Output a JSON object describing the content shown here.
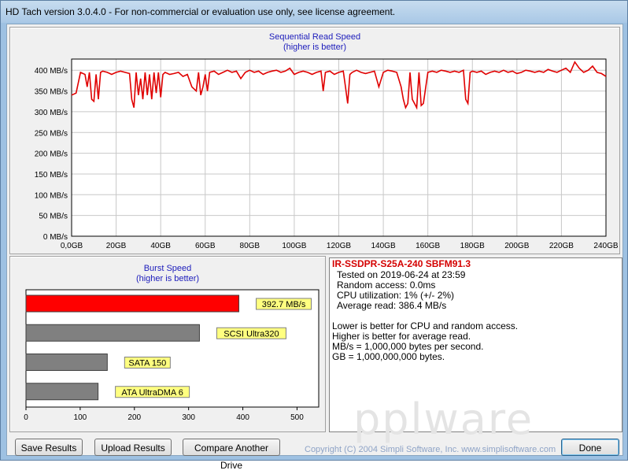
{
  "window": {
    "title": "HD Tach version 3.0.4.0  - For non-commercial or evaluation use only, see license agreement."
  },
  "colors": {
    "read_line": "#e00000",
    "burst_bar": "#ff0000",
    "ref_bar": "#808080",
    "label_bg": "#ffff80",
    "title_blue": "#1c1cbb"
  },
  "chart_data": [
    {
      "type": "line",
      "title": "Sequential Read Speed",
      "subtitle": "(higher is better)",
      "y_ticks": [
        "0 MB/s",
        "50 MB/s",
        "100 MB/s",
        "150 MB/s",
        "200 MB/s",
        "250 MB/s",
        "300 MB/s",
        "350 MB/s",
        "400 MB/s"
      ],
      "x_ticks": [
        "0,0GB",
        "20GB",
        "40GB",
        "60GB",
        "80GB",
        "100GB",
        "120GB",
        "140GB",
        "160GB",
        "180GB",
        "200GB",
        "220GB",
        "240GB"
      ],
      "xlim": [
        0,
        240
      ],
      "ylim": [
        0,
        420
      ],
      "grid": true,
      "series": [
        {
          "x": [
            0,
            2,
            4,
            6,
            7,
            8,
            9,
            10,
            11,
            12,
            13,
            14,
            16,
            18,
            20,
            22,
            24,
            26,
            27,
            28,
            29,
            30,
            31,
            32,
            33,
            34,
            35,
            36,
            37,
            38,
            39,
            40,
            41,
            42,
            44,
            46,
            48,
            50,
            52,
            54,
            56,
            57,
            58,
            59,
            60,
            61,
            62,
            64,
            66,
            68,
            70,
            72,
            74,
            76,
            78,
            80,
            82,
            84,
            86,
            88,
            90,
            92,
            94,
            96,
            98,
            100,
            102,
            104,
            106,
            108,
            110,
            112,
            113,
            114,
            116,
            118,
            120,
            122,
            123,
            124,
            125,
            126,
            128,
            130,
            132,
            134,
            136,
            138,
            140,
            142,
            144,
            146,
            148,
            149,
            150,
            151,
            152,
            153,
            154,
            155,
            156,
            157,
            158,
            160,
            162,
            164,
            166,
            168,
            170,
            172,
            174,
            176,
            177,
            178,
            179,
            180,
            182,
            184,
            186,
            188,
            190,
            192,
            194,
            196,
            198,
            200,
            202,
            204,
            206,
            208,
            210,
            212,
            214,
            216,
            218,
            220,
            222,
            224,
            226,
            228,
            230,
            232,
            234,
            236,
            238,
            240
          ],
          "y": [
            340,
            345,
            395,
            390,
            360,
            395,
            330,
            325,
            390,
            330,
            395,
            398,
            395,
            390,
            395,
            398,
            395,
            392,
            330,
            310,
            395,
            340,
            380,
            330,
            395,
            340,
            390,
            330,
            395,
            345,
            395,
            335,
            390,
            395,
            390,
            392,
            395,
            385,
            390,
            360,
            350,
            395,
            340,
            360,
            390,
            350,
            395,
            398,
            390,
            395,
            400,
            395,
            398,
            380,
            395,
            400,
            395,
            398,
            390,
            395,
            398,
            400,
            395,
            398,
            405,
            390,
            395,
            398,
            395,
            390,
            395,
            398,
            350,
            395,
            398,
            390,
            395,
            398,
            360,
            320,
            390,
            395,
            400,
            395,
            392,
            395,
            398,
            360,
            395,
            400,
            398,
            395,
            360,
            330,
            310,
            320,
            395,
            330,
            320,
            310,
            395,
            315,
            320,
            395,
            398,
            395,
            400,
            398,
            395,
            398,
            395,
            400,
            330,
            320,
            395,
            398,
            395,
            398,
            390,
            395,
            398,
            395,
            400,
            395,
            398,
            392,
            395,
            400,
            398,
            395,
            398,
            395,
            402,
            398,
            395,
            400,
            405,
            395,
            420,
            405,
            395,
            400,
            410,
            395,
            392,
            385
          ]
        }
      ]
    },
    {
      "type": "bar",
      "title": "Burst Speed",
      "subtitle": "(higher is better)",
      "x_ticks": [
        "0",
        "100",
        "200",
        "300",
        "400",
        "500"
      ],
      "xlim": [
        0,
        540
      ],
      "categories": [
        "IR-SSDPR-S25A-240",
        "SCSI Ultra320",
        "SATA 150",
        "ATA UltraDMA 6"
      ],
      "values": [
        392.7,
        320,
        150,
        133
      ],
      "labels": [
        "392.7 MB/s",
        "SCSI Ultra320",
        "SATA 150",
        "ATA UltraDMA 6"
      ]
    }
  ],
  "info": {
    "drive": "IR-SSDPR-S25A-240 SBFM91.3",
    "tested_on": "Tested on 2019-06-24 at 23:59",
    "random_access": "Random access: 0.0ms",
    "cpu": "CPU utilization: 1% (+/- 2%)",
    "avg_read": "Average read: 386.4 MB/s",
    "notes": [
      "Lower is better for CPU and random access.",
      "Higher is better for average read.",
      "MB/s = 1,000,000 bytes per second.",
      "GB = 1,000,000,000 bytes."
    ]
  },
  "watermark": "pplware",
  "footer": {
    "save": "Save Results",
    "upload": "Upload Results",
    "compare": "Compare Another Drive",
    "copyright": "Copyright (C) 2004 Simpli Software, Inc. www.simplisoftware.com",
    "done": "Done"
  }
}
